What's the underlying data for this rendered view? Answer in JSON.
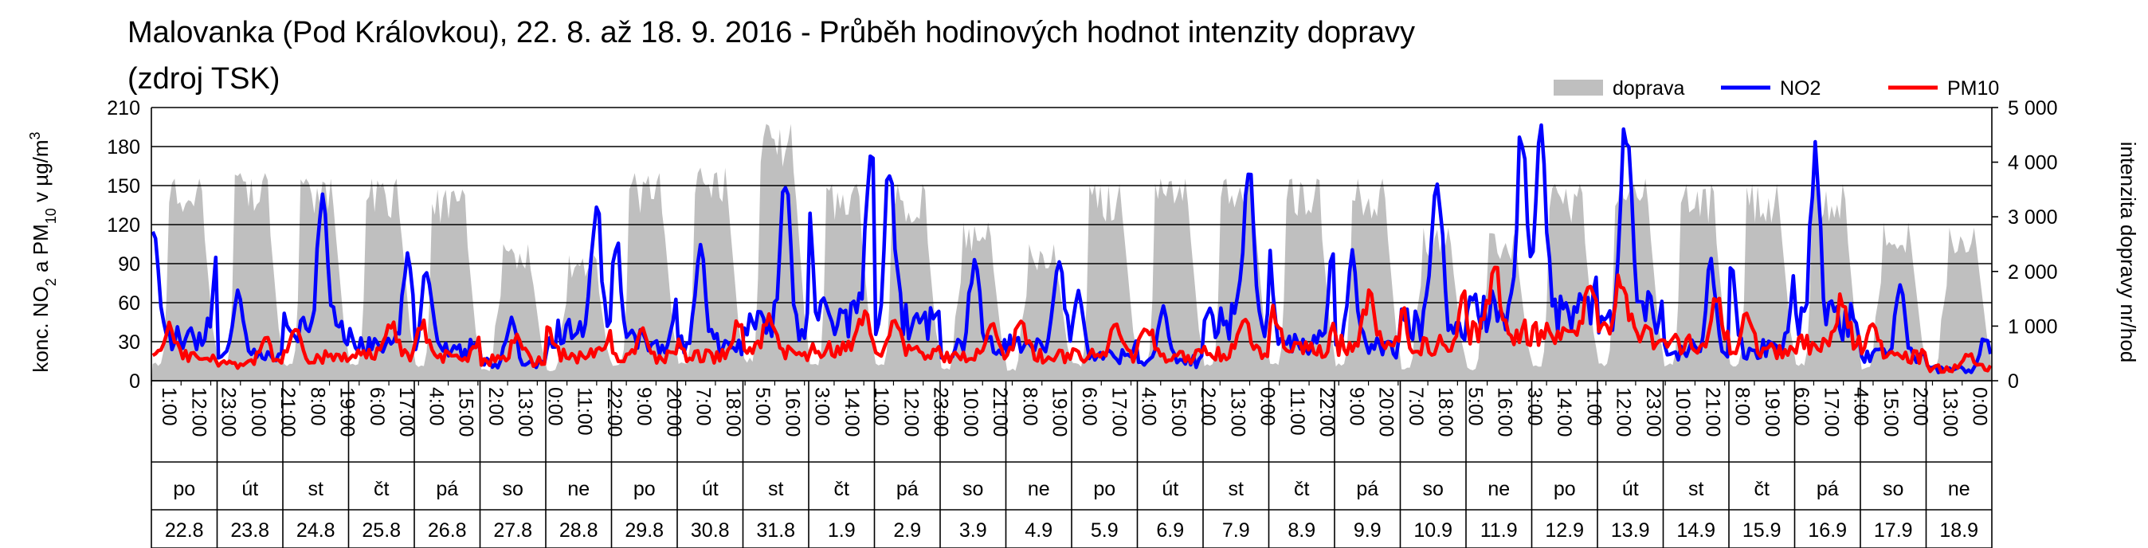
{
  "chart_data": {
    "type": "line",
    "title_line1": "Malovanka (Pod Královkou), 22. 8. až 18. 9. 2016 - Průběh hodinových hodnot intenzity dopravy",
    "title_line2": "(zdroj TSK)",
    "ylabel_left_main": "konc. NO",
    "ylabel_left_sub1": "2",
    "ylabel_left_mid": " a PM",
    "ylabel_left_sub2": "10",
    "ylabel_left_tail": " v µg/m",
    "ylabel_left_sup": "3",
    "ylabel_right": "intenzita dopravy nr/hod",
    "ylim_left": [
      0,
      210
    ],
    "ylim_right": [
      0,
      5000
    ],
    "yticks_left": [
      "0",
      "30",
      "60",
      "90",
      "120",
      "150",
      "180",
      "210"
    ],
    "yticks_right": [
      "0",
      "1 000",
      "2 000",
      "3 000",
      "4 000",
      "5 000"
    ],
    "hour_ticks": [
      "1:00",
      "12:00",
      "23:00",
      "10:00",
      "21:00",
      "8:00",
      "19:00",
      "6:00",
      "17:00",
      "4:00",
      "15:00",
      "2:00",
      "13:00",
      "0:00",
      "11:00",
      "22:00",
      "9:00",
      "20:00",
      "7:00",
      "18:00",
      "5:00",
      "16:00",
      "3:00",
      "14:00",
      "1:00",
      "12:00",
      "23:00",
      "10:00",
      "21:00",
      "8:00",
      "19:00",
      "6:00",
      "17:00",
      "4:00",
      "15:00",
      "2:00",
      "13:00",
      "0:00",
      "11:00",
      "22:00",
      "9:00",
      "20:00",
      "7:00",
      "18:00",
      "5:00",
      "16:00",
      "3:00",
      "14:00",
      "1:00",
      "12:00",
      "23:00",
      "10:00",
      "21:00",
      "8:00",
      "19:00",
      "6:00",
      "17:00",
      "4:00",
      "15:00",
      "2:00",
      "13:00",
      "0:00"
    ],
    "weekdays": [
      "po",
      "út",
      "st",
      "čt",
      "pá",
      "so",
      "ne",
      "po",
      "út",
      "st",
      "čt",
      "pá",
      "so",
      "ne",
      "po",
      "út",
      "st",
      "čt",
      "pá",
      "so",
      "ne",
      "po",
      "út",
      "st",
      "čt",
      "pá",
      "so",
      "ne"
    ],
    "dates": [
      "22.8",
      "23.8",
      "24.8",
      "25.8",
      "26.8",
      "27.8",
      "28.8",
      "29.8",
      "30.8",
      "31.8",
      "1.9",
      "2.9",
      "3.9",
      "4.9",
      "5.9",
      "6.9",
      "7.9",
      "8.9",
      "9.9",
      "10.9",
      "11.9",
      "12.9",
      "13.9",
      "14.9",
      "15.9",
      "16.9",
      "17.9",
      "18.9"
    ],
    "series": [
      {
        "name": "doprava",
        "color": "#bfbfbf",
        "axis": "right",
        "note": "hourly traffic intensity; daily profile peaks",
        "daily_peaks": [
          3700,
          3800,
          3700,
          3700,
          3500,
          2500,
          2300,
          3800,
          3900,
          4700,
          3600,
          3600,
          2900,
          2500,
          3600,
          3700,
          3700,
          3700,
          3700,
          2800,
          2700,
          3600,
          3700,
          3600,
          3600,
          3600,
          2900,
          2800
        ]
      },
      {
        "name": "NO2",
        "color": "#0000ff",
        "axis": "left",
        "daily_peaks": [
          108,
          62,
          135,
          85,
          80,
          45,
          120,
          100,
          90,
          135,
          165,
          152,
          85,
          90,
          60,
          50,
          150,
          95,
          85,
          150,
          175,
          175,
          180,
          80,
          80,
          155,
          62,
          30
        ]
      },
      {
        "name": "PM10",
        "color": "#ff0000",
        "axis": "left",
        "daily_peaks": [
          42,
          32,
          42,
          44,
          46,
          36,
          45,
          42,
          45,
          50,
          55,
          50,
          45,
          45,
          45,
          45,
          50,
          55,
          65,
          65,
          85,
          80,
          82,
          65,
          52,
          65,
          44,
          22
        ]
      }
    ],
    "legend_position": "top-right",
    "grid": true
  }
}
